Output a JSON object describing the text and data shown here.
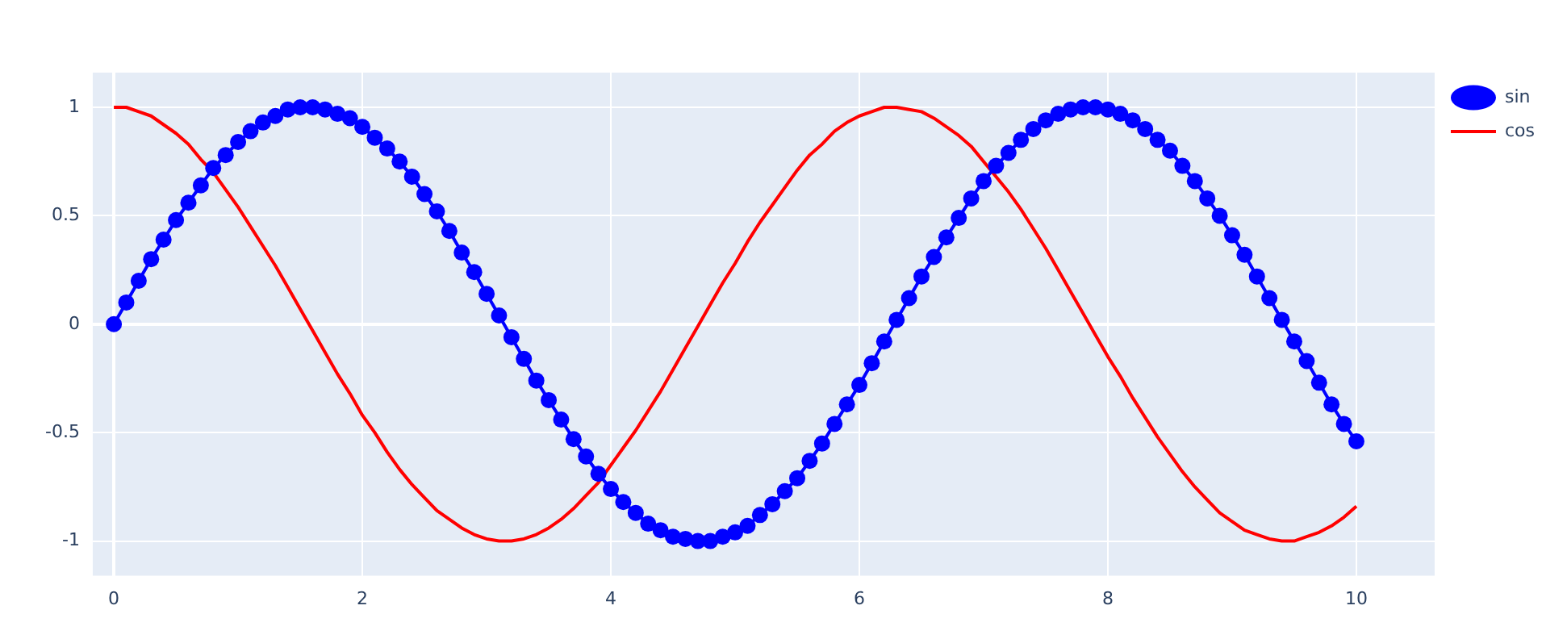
{
  "chart_data": {
    "type": "line",
    "x": [
      0,
      0.1,
      0.2,
      0.3,
      0.4,
      0.5,
      0.6,
      0.7,
      0.8,
      0.9,
      1,
      1.1,
      1.2,
      1.3,
      1.4,
      1.5,
      1.6,
      1.7,
      1.8,
      1.9,
      2,
      2.1,
      2.2,
      2.3,
      2.4,
      2.5,
      2.6,
      2.7,
      2.8,
      2.9,
      3,
      3.1,
      3.2,
      3.3,
      3.4,
      3.5,
      3.6,
      3.7,
      3.8,
      3.9,
      4,
      4.1,
      4.2,
      4.3,
      4.4,
      4.5,
      4.6,
      4.7,
      4.8,
      4.9,
      5,
      5.1,
      5.2,
      5.3,
      5.4,
      5.5,
      5.6,
      5.7,
      5.8,
      5.9,
      6,
      6.1,
      6.2,
      6.3,
      6.4,
      6.5,
      6.6,
      6.7,
      6.8,
      6.9,
      7,
      7.1,
      7.2,
      7.3,
      7.4,
      7.5,
      7.6,
      7.7,
      7.8,
      7.9,
      8,
      8.1,
      8.2,
      8.3,
      8.4,
      8.5,
      8.6,
      8.7,
      8.8,
      8.9,
      9,
      9.1,
      9.2,
      9.3,
      9.4,
      9.5,
      9.6,
      9.7,
      9.8,
      9.9,
      10
    ],
    "series": [
      {
        "name": "sin",
        "color": "#0000ff",
        "marker": "circle",
        "values": [
          0,
          0.1,
          0.2,
          0.3,
          0.39,
          0.48,
          0.56,
          0.64,
          0.72,
          0.78,
          0.84,
          0.89,
          0.93,
          0.96,
          0.99,
          1,
          1,
          0.99,
          0.97,
          0.95,
          0.91,
          0.86,
          0.81,
          0.75,
          0.68,
          0.6,
          0.52,
          0.43,
          0.33,
          0.24,
          0.14,
          0.04,
          -0.06,
          -0.16,
          -0.26,
          -0.35,
          -0.44,
          -0.53,
          -0.61,
          -0.69,
          -0.76,
          -0.82,
          -0.87,
          -0.92,
          -0.95,
          -0.98,
          -0.99,
          -1,
          -1,
          -0.98,
          -0.96,
          -0.93,
          -0.88,
          -0.83,
          -0.77,
          -0.71,
          -0.63,
          -0.55,
          -0.46,
          -0.37,
          -0.28,
          -0.18,
          -0.08,
          0.02,
          0.12,
          0.22,
          0.31,
          0.4,
          0.49,
          0.58,
          0.66,
          0.73,
          0.79,
          0.85,
          0.9,
          0.94,
          0.97,
          0.99,
          1,
          1,
          0.99,
          0.97,
          0.94,
          0.9,
          0.85,
          0.8,
          0.73,
          0.66,
          0.58,
          0.5,
          0.41,
          0.32,
          0.22,
          0.12,
          0.02,
          -0.08,
          -0.17,
          -0.27,
          -0.37,
          -0.46,
          -0.54
        ]
      },
      {
        "name": "cos",
        "color": "#ff0000",
        "marker": "none",
        "values": [
          1,
          1,
          0.98,
          0.96,
          0.92,
          0.88,
          0.83,
          0.76,
          0.7,
          0.62,
          0.54,
          0.45,
          0.36,
          0.27,
          0.17,
          0.07,
          -0.03,
          -0.13,
          -0.23,
          -0.32,
          -0.42,
          -0.5,
          -0.59,
          -0.67,
          -0.74,
          -0.8,
          -0.86,
          -0.9,
          -0.94,
          -0.97,
          -0.99,
          -1,
          -1,
          -0.99,
          -0.97,
          -0.94,
          -0.9,
          -0.85,
          -0.79,
          -0.73,
          -0.65,
          -0.57,
          -0.49,
          -0.4,
          -0.31,
          -0.21,
          -0.11,
          -0.01,
          0.09,
          0.19,
          0.28,
          0.38,
          0.47,
          0.55,
          0.63,
          0.71,
          0.78,
          0.83,
          0.89,
          0.93,
          0.96,
          0.98,
          1,
          1,
          0.99,
          0.98,
          0.95,
          0.91,
          0.87,
          0.82,
          0.75,
          0.68,
          0.61,
          0.53,
          0.44,
          0.35,
          0.25,
          0.15,
          0.05,
          -0.05,
          -0.15,
          -0.24,
          -0.34,
          -0.43,
          -0.52,
          -0.6,
          -0.68,
          -0.75,
          -0.81,
          -0.87,
          -0.91,
          -0.95,
          -0.97,
          -0.99,
          -1,
          -1,
          -0.98,
          -0.96,
          -0.93,
          -0.89,
          -0.84
        ]
      }
    ],
    "xlim": [
      -0.17,
      10.63
    ],
    "xticks": [
      0,
      2,
      4,
      6,
      8,
      10
    ],
    "ylim": [
      -1.16,
      1.16
    ],
    "yticks": [
      -1,
      -0.5,
      0,
      0.5,
      1
    ],
    "grid": true,
    "legend": "top right",
    "line_style": "solid"
  }
}
